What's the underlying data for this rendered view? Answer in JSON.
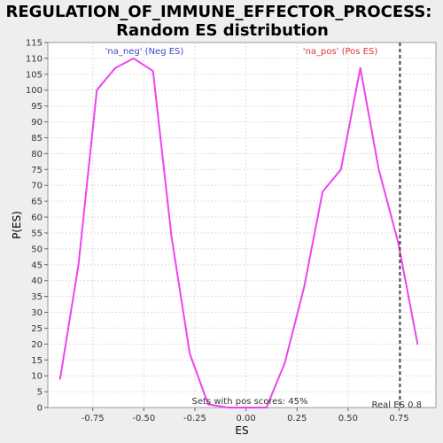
{
  "chart_data": {
    "type": "line",
    "title_line1": "REGULATION_OF_IMMUNE_EFFECTOR_PROCESS:",
    "title_line2": "Random ES distribution",
    "xlabel": "ES",
    "ylabel": "P(ES)",
    "xlim": [
      -0.97,
      0.93
    ],
    "ylim": [
      0,
      115
    ],
    "xticks": [
      -0.75,
      -0.5,
      -0.25,
      0.0,
      0.25,
      0.5,
      0.75
    ],
    "xtick_labels": [
      "-0.75",
      "-0.50",
      "-0.25",
      "0.00",
      "0.25",
      "0.50",
      "0.75"
    ],
    "yticks": [
      0,
      5,
      10,
      15,
      20,
      25,
      30,
      35,
      40,
      45,
      50,
      55,
      60,
      65,
      70,
      75,
      80,
      85,
      90,
      95,
      100,
      105,
      110,
      115
    ],
    "grid": true,
    "series": [
      {
        "color": "#ee44ee",
        "x": [
          -0.91,
          -0.82,
          -0.73,
          -0.64,
          -0.55,
          -0.455,
          -0.365,
          -0.275,
          -0.185,
          -0.09,
          0.0,
          0.1,
          0.19,
          0.285,
          0.375,
          0.465,
          0.56,
          0.65,
          0.745,
          0.84
        ],
        "y": [
          9,
          45,
          100,
          107,
          110,
          106,
          54,
          17,
          1,
          0,
          0,
          0,
          14,
          38,
          68,
          75,
          107,
          75,
          52,
          20
        ]
      }
    ],
    "real_es": 0.754,
    "real_es_label": "Real ES 0.8",
    "neg_label": "'na_neg' (Neg ES)",
    "pos_label": "'na_pos' (Pos ES)",
    "neg_label_color": "#4444cc",
    "pos_label_color": "#dd3333",
    "footer_text": "Sets with pos scores: 45%"
  }
}
